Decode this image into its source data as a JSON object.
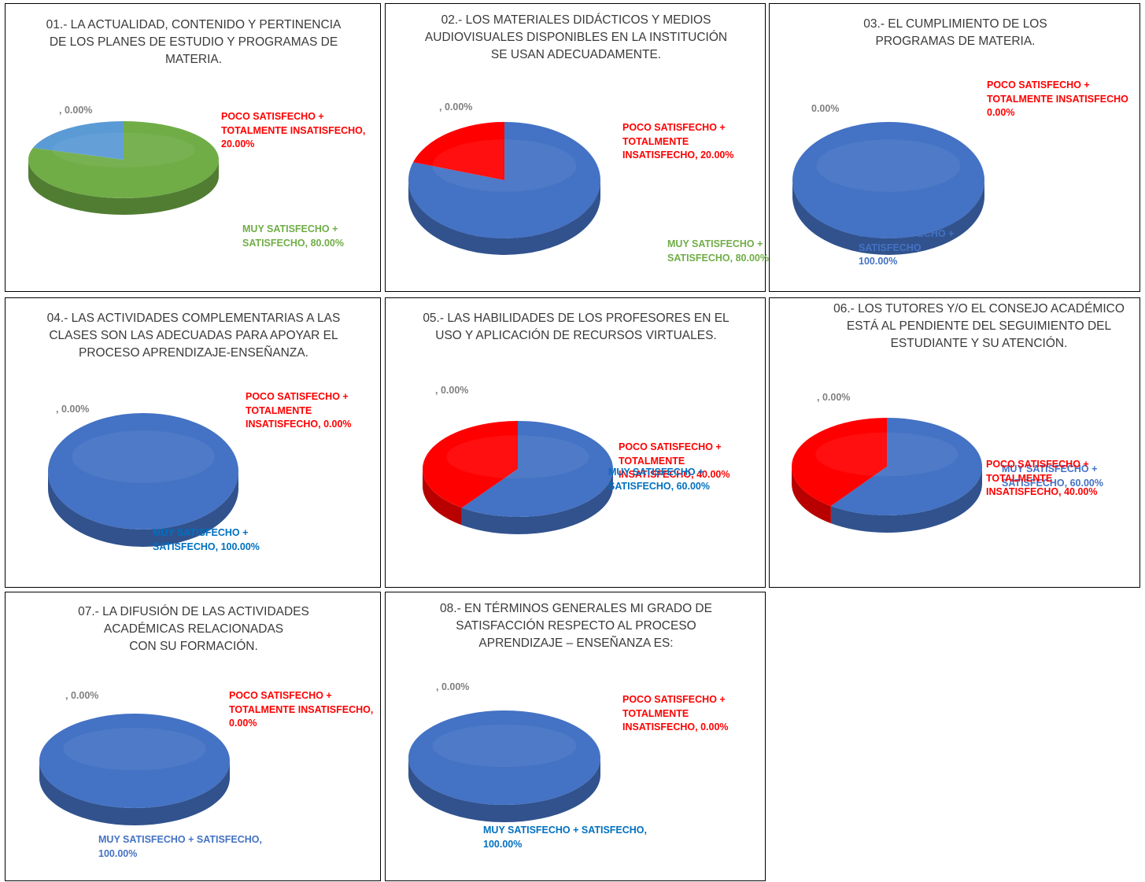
{
  "chart_data": [
    {
      "type": "pie",
      "title": "01.- LA ACTUALIDAD, CONTENIDO Y PERTINENCIA DE LOS PLANES DE ESTUDIO Y PROGRAMAS DE MATERIA.",
      "title_lines": [
        "01.- LA ACTUALIDAD, CONTENIDO Y PERTINENCIA",
        "DE LOS PLANES DE ESTUDIO Y PROGRAMAS DE",
        "MATERIA."
      ],
      "slices": [
        {
          "label": "MUY SATISFECHO + SATISFECHO",
          "value": 80,
          "color": "#70ad47"
        },
        {
          "label": "POCO SATISFECHO + TOTALMENTE INSATISFECHO",
          "value": 20,
          "color": "#5b9bd5"
        },
        {
          "label": "",
          "value": 0,
          "color": "#a5a5a5"
        }
      ],
      "data_labels": {
        "zero": [
          ", 0.00%"
        ],
        "poco": [
          "POCO SATISFECHO +",
          "TOTALMENTE INSATISFECHO,",
          "20.00%"
        ],
        "muy": [
          "MUY SATISFECHO +",
          "SATISFECHO, 80.00%"
        ]
      }
    },
    {
      "type": "pie",
      "title": "02.- LOS MATERIALES DIDÁCTICOS Y MEDIOS AUDIOVISUALES DISPONIBLES EN LA INSTITUCIÓN SE USAN ADECUADAMENTE.",
      "title_lines": [
        "02.- LOS MATERIALES DIDÁCTICOS Y MEDIOS",
        "AUDIOVISUALES DISPONIBLES EN LA INSTITUCIÓN",
        "SE USAN ADECUADAMENTE."
      ],
      "slices": [
        {
          "label": "MUY SATISFECHO + SATISFECHO",
          "value": 80,
          "color": "#4472c4"
        },
        {
          "label": "POCO SATISFECHO + TOTALMENTE INSATISFECHO",
          "value": 20,
          "color": "#ff0000"
        },
        {
          "label": "",
          "value": 0,
          "color": "#a5a5a5"
        }
      ],
      "data_labels": {
        "zero": [
          ", 0.00%"
        ],
        "poco": [
          "POCO SATISFECHO +",
          "TOTALMENTE",
          "INSATISFECHO, 20.00%"
        ],
        "muy": [
          "MUY SATISFECHO +",
          "SATISFECHO, 80.00%"
        ]
      }
    },
    {
      "type": "pie",
      "title": "03.- EL CUMPLIMIENTO DE LOS PROGRAMAS DE MATERIA.",
      "title_lines": [
        "03.- EL CUMPLIMIENTO DE LOS",
        "PROGRAMAS DE MATERIA."
      ],
      "slices": [
        {
          "label": "MUY SATISFECHO + SATISFECHO",
          "value": 100,
          "color": "#4472c4"
        },
        {
          "label": "POCO SATISFECHO + TOTALMENTE INSATISFECHO",
          "value": 0,
          "color": "#ff0000"
        },
        {
          "label": "",
          "value": 0,
          "color": "#a5a5a5"
        }
      ],
      "data_labels": {
        "zero": [
          "0.00%"
        ],
        "poco": [
          "POCO SATISFECHO +",
          "TOTALMENTE INSATISFECHO",
          "0.00%"
        ],
        "muy": [
          "MUY SATISFECHO +",
          "SATISFECHO",
          "100.00%"
        ]
      }
    },
    {
      "type": "pie",
      "title": "04.- LAS ACTIVIDADES COMPLEMENTARIAS A LAS CLASES SON LAS ADECUADAS PARA APOYAR EL PROCESO APRENDIZAJE-ENSEÑANZA.",
      "title_lines": [
        "04.- LAS ACTIVIDADES COMPLEMENTARIAS A LAS",
        "CLASES SON LAS ADECUADAS PARA APOYAR EL",
        "PROCESO APRENDIZAJE-ENSEÑANZA."
      ],
      "slices": [
        {
          "label": "MUY SATISFECHO + SATISFECHO",
          "value": 100,
          "color": "#4472c4"
        },
        {
          "label": "POCO SATISFECHO + TOTALMENTE INSATISFECHO",
          "value": 0,
          "color": "#ff0000"
        },
        {
          "label": "",
          "value": 0,
          "color": "#a5a5a5"
        }
      ],
      "data_labels": {
        "zero": [
          ", 0.00%"
        ],
        "poco": [
          "POCO SATISFECHO +",
          "TOTALMENTE",
          "INSATISFECHO, 0.00%"
        ],
        "muy": [
          "MUY SATISFECHO +",
          "SATISFECHO, 100.00%"
        ]
      }
    },
    {
      "type": "pie",
      "title": "05.- LAS HABILIDADES DE LOS PROFESORES EN EL USO Y APLICACIÓN DE RECURSOS VIRTUALES.",
      "title_lines": [
        "05.- LAS HABILIDADES DE LOS PROFESORES EN EL",
        "USO Y APLICACIÓN DE RECURSOS VIRTUALES."
      ],
      "slices": [
        {
          "label": "MUY SATISFECHO + SATISFECHO",
          "value": 60,
          "color": "#4472c4"
        },
        {
          "label": "POCO SATISFECHO + TOTALMENTE INSATISFECHO",
          "value": 40,
          "color": "#ff0000"
        },
        {
          "label": "",
          "value": 0,
          "color": "#a5a5a5"
        }
      ],
      "data_labels": {
        "zero": [
          ", 0.00%"
        ],
        "poco": [
          "POCO SATISFECHO +",
          "TOTALMENTE",
          "INSATISFECHO, 40.00%"
        ],
        "muy": [
          "MUY SATISFECHO +",
          "SATISFECHO, 60.00%"
        ]
      }
    },
    {
      "type": "pie",
      "title": "06.- LOS TUTORES Y/O EL CONSEJO ACADÉMICO ESTÁ AL PENDIENTE DEL SEGUIMIENTO DEL ESTUDIANTE Y SU ATENCIÓN.",
      "title_lines": [
        "06.- LOS TUTORES Y/O EL CONSEJO ACADÉMICO",
        "ESTÁ AL PENDIENTE DEL SEGUIMIENTO DEL",
        "ESTUDIANTE Y SU ATENCIÓN."
      ],
      "slices": [
        {
          "label": "MUY SATISFECHO + SATISFECHO",
          "value": 60,
          "color": "#4472c4"
        },
        {
          "label": "POCO SATISFECHO + TOTALMENTE INSATISFECHO",
          "value": 40,
          "color": "#ff0000"
        },
        {
          "label": "",
          "value": 0,
          "color": "#a5a5a5"
        }
      ],
      "data_labels": {
        "zero": [
          ", 0.00%"
        ],
        "poco": [
          "POCO SATISFECHO +",
          "TOTALMENTE",
          "INSATISFECHO, 40.00%"
        ],
        "muy": [
          "MUY SATISFECHO +",
          "SATISFECHO, 60.00%"
        ]
      }
    },
    {
      "type": "pie",
      "title": "07.- LA DIFUSIÓN DE LAS ACTIVIDADES ACADÉMICAS RELACIONADAS CON SU FORMACIÓN.",
      "title_lines": [
        "07.- LA DIFUSIÓN DE LAS ACTIVIDADES",
        "ACADÉMICAS RELACIONADAS",
        "CON SU FORMACIÓN."
      ],
      "slices": [
        {
          "label": "MUY SATISFECHO + SATISFECHO",
          "value": 100,
          "color": "#4472c4"
        },
        {
          "label": "POCO SATISFECHO + TOTALMENTE INSATISFECHO",
          "value": 0,
          "color": "#ff0000"
        },
        {
          "label": "",
          "value": 0,
          "color": "#a5a5a5"
        }
      ],
      "data_labels": {
        "zero": [
          ", 0.00%"
        ],
        "poco": [
          "POCO SATISFECHO +",
          "TOTALMENTE INSATISFECHO,",
          "0.00%"
        ],
        "muy": [
          "MUY SATISFECHO + SATISFECHO,",
          "100.00%"
        ]
      }
    },
    {
      "type": "pie",
      "title": "08.- EN TÉRMINOS GENERALES MI GRADO DE SATISFACCIÓN RESPECTO AL PROCESO APRENDIZAJE – ENSEÑANZA ES:",
      "title_lines": [
        "08.- EN TÉRMINOS GENERALES MI GRADO DE",
        "SATISFACCIÓN  RESPECTO AL PROCESO",
        "APRENDIZAJE – ENSEÑANZA ES:"
      ],
      "slices": [
        {
          "label": "MUY SATISFECHO + SATISFECHO",
          "value": 100,
          "color": "#4472c4"
        },
        {
          "label": "POCO SATISFECHO + TOTALMENTE INSATISFECHO",
          "value": 0,
          "color": "#ff0000"
        },
        {
          "label": "",
          "value": 0,
          "color": "#a5a5a5"
        }
      ],
      "data_labels": {
        "zero": [
          ", 0.00%"
        ],
        "poco": [
          "POCO SATISFECHO +",
          "TOTALMENTE",
          "INSATISFECHO, 0.00%"
        ],
        "muy": [
          "MUY SATISFECHO + SATISFECHO,",
          "100.00%"
        ]
      }
    }
  ]
}
